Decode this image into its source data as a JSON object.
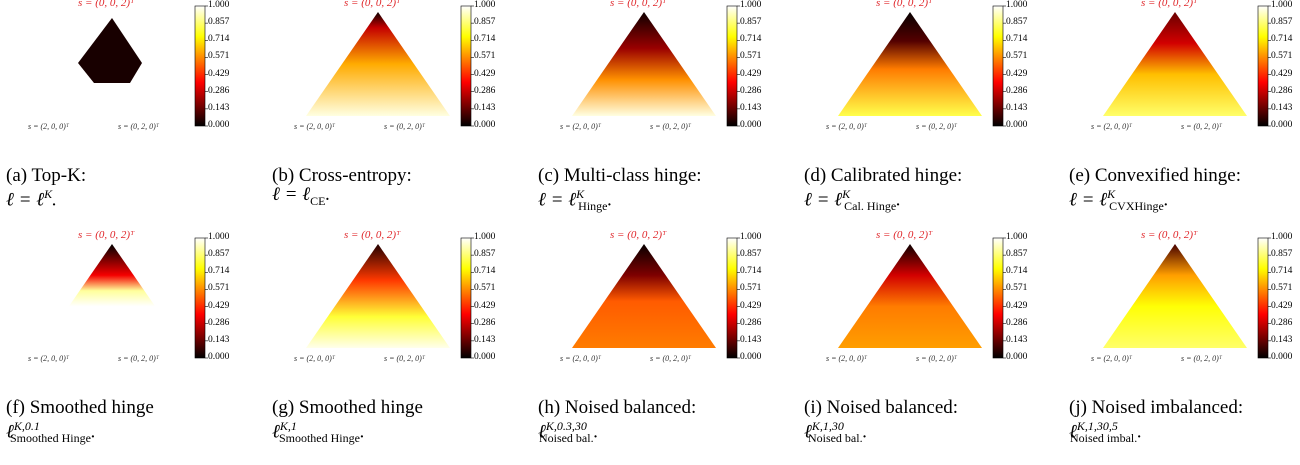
{
  "top_vertex_label": "s = (0, 0, 2)ᵀ",
  "left_vertex_label": "s = (2, 0, 0)ᵀ",
  "right_vertex_label": "s = (0, 2, 0)ᵀ",
  "colorbar_ticks": [
    "1.000",
    "0.857",
    "0.714",
    "0.571",
    "0.429",
    "0.286",
    "0.143",
    "0.000"
  ],
  "panels": [
    {
      "caption_line1": "(a) Top-K:",
      "caption_line2_pre": "ℓ = ℓ",
      "sup": "K",
      "sub": "",
      "tail": "."
    },
    {
      "caption_line1": "(b) Cross-entropy:",
      "caption_line2_pre": "ℓ = ℓ",
      "sup": "",
      "sub": "CE",
      "tail": "."
    },
    {
      "caption_line1": "(c) Multi-class hinge:",
      "caption_line2_pre": "ℓ = ℓ",
      "sup": "K",
      "sub": "Hinge",
      "tail": "."
    },
    {
      "caption_line1": "(d) Calibrated hinge:",
      "caption_line2_pre": "ℓ = ℓ",
      "sup": "K",
      "sub": "Cal. Hinge",
      "tail": "."
    },
    {
      "caption_line1": "(e) Convexified hinge:",
      "caption_line2_pre": "ℓ = ℓ",
      "sup": "K",
      "sub": "CVXHinge",
      "tail": "."
    },
    {
      "caption_line1": "(f) Smoothed hinge",
      "caption_line2_pre": "ℓ",
      "sup": "K,0.1",
      "sub": "Smoothed Hinge",
      "tail": "."
    },
    {
      "caption_line1": "(g) Smoothed hinge",
      "caption_line2_pre": "ℓ",
      "sup": "K,1",
      "sub": "Smoothed Hinge",
      "tail": "."
    },
    {
      "caption_line1": "(h) Noised balanced:",
      "caption_line2_pre": "ℓ",
      "sup": "K,0.3,30",
      "sub": "Noised bal.",
      "tail": "."
    },
    {
      "caption_line1": "(i) Noised balanced:",
      "caption_line2_pre": "ℓ",
      "sup": "K,1,30",
      "sub": "Noised bal.",
      "tail": "."
    },
    {
      "caption_line1": "(j) Noised imbalanced:",
      "caption_line2_pre": "ℓ",
      "sup": "K,1,30,5",
      "sub": "Noised imbal.",
      "tail": "."
    }
  ],
  "colors": {
    "hot_dark": "#000000",
    "hot_red": "#e60000",
    "hot_orange": "#ff8000",
    "hot_yellow": "#ffff00",
    "hot_white": "#ffffff",
    "label_red": "#e0262a"
  }
}
